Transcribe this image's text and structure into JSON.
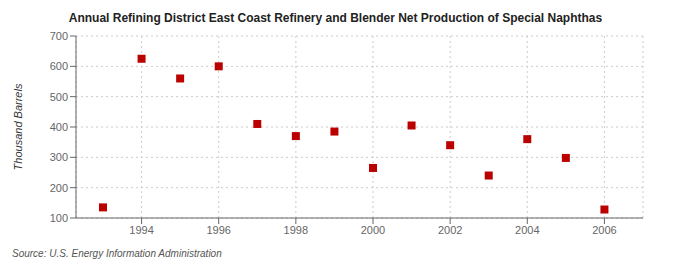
{
  "chart_data": {
    "type": "scatter",
    "title": "Annual Refining District East Coast Refinery and Blender Net Production of Special Naphthas",
    "y_label": "Thousand Barrels",
    "annotations": [
      "Source: U.S. Energy Information Administration"
    ],
    "x": [
      1993,
      1994,
      1995,
      1996,
      1997,
      1998,
      1999,
      2000,
      2001,
      2002,
      2003,
      2004,
      2005,
      2006
    ],
    "values": [
      135,
      625,
      560,
      600,
      410,
      370,
      385,
      265,
      405,
      340,
      240,
      360,
      298,
      128
    ],
    "color": "#bb0000",
    "marker": "square",
    "xlim": [
      1992.3,
      2007
    ],
    "xticks": [
      1994,
      1996,
      1998,
      2000,
      2002,
      2004,
      2006
    ],
    "ylim": [
      100,
      700
    ],
    "yticks": [
      100,
      200,
      300,
      400,
      500,
      600,
      700
    ],
    "grid": true
  }
}
